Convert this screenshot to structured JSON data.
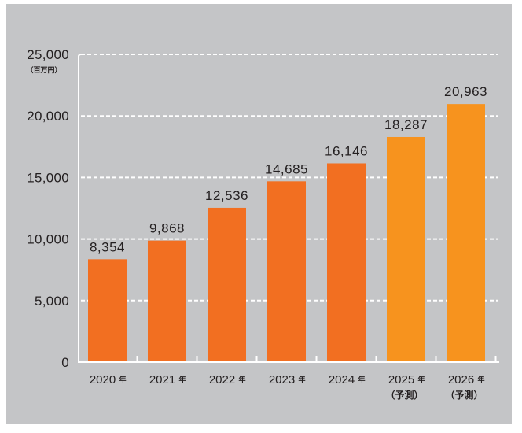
{
  "chart_data": {
    "type": "bar",
    "title": "",
    "xlabel": "",
    "ylabel": "",
    "unit_label": "（百万円）",
    "categories": [
      "2020",
      "2021",
      "2022",
      "2023",
      "2024",
      "2025",
      "2026"
    ],
    "category_suffix": "年",
    "category_sublabels": [
      "",
      "",
      "",
      "",
      "",
      "（予測）",
      "（予測）"
    ],
    "values": [
      8354,
      9868,
      12536,
      14685,
      16146,
      18287,
      20963
    ],
    "value_labels": [
      "8,354",
      "9,868",
      "12,536",
      "14,685",
      "16,146",
      "18,287",
      "20,963"
    ],
    "forecast": [
      false,
      false,
      false,
      false,
      false,
      true,
      true
    ],
    "ylim": [
      0,
      25000
    ],
    "yticks": [
      0,
      5000,
      10000,
      15000,
      20000,
      25000
    ],
    "ytick_labels": [
      "0",
      "5,000",
      "10,000",
      "15,000",
      "20,000",
      "25,000"
    ],
    "grid": true,
    "legend": "none",
    "colors": {
      "actual": "#f26f21",
      "forecast": "#f7931e",
      "background": "#c4c5c7",
      "grid": "#ffffff",
      "text": "#231f20"
    }
  }
}
